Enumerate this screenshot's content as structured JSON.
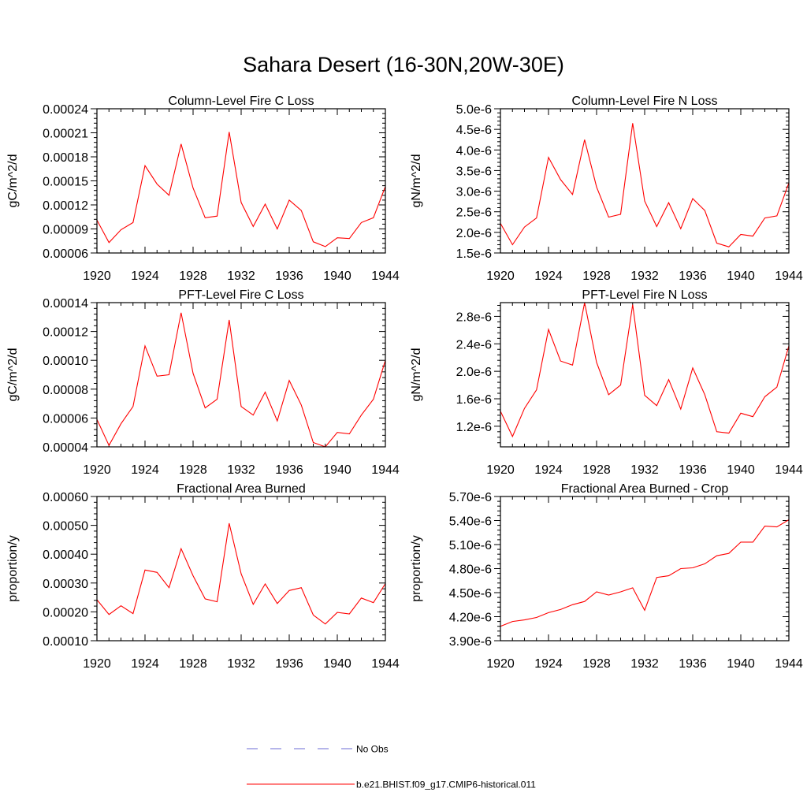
{
  "title": "Sahara Desert (16-30N,20W-30E)",
  "legend": {
    "placement": "bottom-center",
    "entries": [
      {
        "label": "No Obs",
        "color": "#6b6bd6",
        "style": "dashed"
      },
      {
        "label": "b.e21.BHIST.f09_g17.CMIP6-historical.011",
        "color": "#ff0000",
        "style": "solid"
      }
    ]
  },
  "chart_data": [
    {
      "type": "line",
      "title": "Column-Level Fire C Loss",
      "ylabel": "gC/m^2/d",
      "xlabel": "",
      "xlim": [
        1920,
        1944
      ],
      "ylim": [
        6e-05,
        0.00024
      ],
      "xticks": [
        "1920",
        "1924",
        "1928",
        "1932",
        "1936",
        "1940",
        "1944"
      ],
      "yticks": [
        "0.00006",
        "0.00009",
        "0.00012",
        "0.00015",
        "0.00018",
        "0.00021",
        "0.00024"
      ],
      "x": [
        1920,
        1921,
        1922,
        1923,
        1924,
        1925,
        1926,
        1927,
        1928,
        1929,
        1930,
        1931,
        1932,
        1933,
        1934,
        1935,
        1936,
        1937,
        1938,
        1939,
        1940,
        1941,
        1942,
        1943,
        1944
      ],
      "series": [
        {
          "color": "#ff0000",
          "values": [
            0.000101,
            7.3e-05,
            8.9e-05,
            9.8e-05,
            0.000169,
            0.000146,
            0.000132,
            0.000196,
            0.000141,
            0.000104,
            0.000106,
            0.000211,
            0.000123,
            9.3e-05,
            0.000121,
            9e-05,
            0.000126,
            0.000113,
            7.4e-05,
            6.8e-05,
            7.9e-05,
            7.8e-05,
            9.8e-05,
            0.000104,
            0.000143
          ]
        }
      ]
    },
    {
      "type": "line",
      "title": "Column-Level Fire N Loss",
      "ylabel": "gN/m^2/d",
      "xlabel": "",
      "xlim": [
        1920,
        1944
      ],
      "ylim": [
        1.5e-06,
        5e-06
      ],
      "xticks": [
        "1920",
        "1924",
        "1928",
        "1932",
        "1936",
        "1940",
        "1944"
      ],
      "yticks": [
        "1.5e-6",
        "2.0e-6",
        "2.5e-6",
        "3.0e-6",
        "3.5e-6",
        "4.0e-6",
        "4.5e-6",
        "5.0e-6"
      ],
      "x": [
        1920,
        1921,
        1922,
        1923,
        1924,
        1925,
        1926,
        1927,
        1928,
        1929,
        1930,
        1931,
        1932,
        1933,
        1934,
        1935,
        1936,
        1937,
        1938,
        1939,
        1940,
        1941,
        1942,
        1943,
        1944
      ],
      "series": [
        {
          "color": "#ff0000",
          "values": [
            2.22e-06,
            1.7e-06,
            2.13e-06,
            2.35e-06,
            3.82e-06,
            3.28e-06,
            2.92e-06,
            4.25e-06,
            3.1e-06,
            2.37e-06,
            2.44e-06,
            4.65e-06,
            2.76e-06,
            2.14e-06,
            2.72e-06,
            2.09e-06,
            2.82e-06,
            2.53e-06,
            1.74e-06,
            1.65e-06,
            1.95e-06,
            1.91e-06,
            2.35e-06,
            2.4e-06,
            3.2e-06
          ]
        }
      ]
    },
    {
      "type": "line",
      "title": "PFT-Level Fire C Loss",
      "ylabel": "gC/m^2/d",
      "xlabel": "",
      "xlim": [
        1920,
        1944
      ],
      "ylim": [
        4e-05,
        0.00014
      ],
      "xticks": [
        "1920",
        "1924",
        "1928",
        "1932",
        "1936",
        "1940",
        "1944"
      ],
      "yticks": [
        "0.00004",
        "0.00006",
        "0.00008",
        "0.00010",
        "0.00012",
        "0.00014"
      ],
      "x": [
        1920,
        1921,
        1922,
        1923,
        1924,
        1925,
        1926,
        1927,
        1928,
        1929,
        1930,
        1931,
        1932,
        1933,
        1934,
        1935,
        1936,
        1937,
        1938,
        1939,
        1940,
        1941,
        1942,
        1943,
        1944
      ],
      "series": [
        {
          "color": "#ff0000",
          "values": [
            5.9e-05,
            4.1e-05,
            5.6e-05,
            6.8e-05,
            0.00011,
            8.9e-05,
            9e-05,
            0.000133,
            9.1e-05,
            6.7e-05,
            7.3e-05,
            0.000128,
            6.8e-05,
            6.2e-05,
            7.8e-05,
            5.8e-05,
            8.6e-05,
            6.9e-05,
            4.3e-05,
            4e-05,
            5e-05,
            4.9e-05,
            6.2e-05,
            7.3e-05,
            0.0001
          ]
        }
      ]
    },
    {
      "type": "line",
      "title": "PFT-Level Fire N Loss",
      "ylabel": "gN/m^2/d",
      "xlabel": "",
      "xlim": [
        1920,
        1944
      ],
      "ylim": [
        9e-07,
        3e-06
      ],
      "xticks": [
        "1920",
        "1924",
        "1928",
        "1932",
        "1936",
        "1940",
        "1944"
      ],
      "yticks": [
        "1.2e-6",
        "1.6e-6",
        "2.0e-6",
        "2.4e-6",
        "2.8e-6"
      ],
      "x": [
        1920,
        1921,
        1922,
        1923,
        1924,
        1925,
        1926,
        1927,
        1928,
        1929,
        1930,
        1931,
        1932,
        1933,
        1934,
        1935,
        1936,
        1937,
        1938,
        1939,
        1940,
        1941,
        1942,
        1943,
        1944
      ],
      "series": [
        {
          "color": "#ff0000",
          "values": [
            1.42e-06,
            1.05e-06,
            1.46e-06,
            1.73e-06,
            2.61e-06,
            2.15e-06,
            2.09e-06,
            3e-06,
            2.13e-06,
            1.66e-06,
            1.8e-06,
            2.97e-06,
            1.65e-06,
            1.5e-06,
            1.88e-06,
            1.45e-06,
            2.05e-06,
            1.66e-06,
            1.12e-06,
            1.1e-06,
            1.39e-06,
            1.34e-06,
            1.63e-06,
            1.77e-06,
            2.37e-06
          ]
        }
      ]
    },
    {
      "type": "line",
      "title": "Fractional Area Burned",
      "ylabel": "proportion/y",
      "xlabel": "",
      "xlim": [
        1920,
        1944
      ],
      "ylim": [
        0.0001,
        0.0006
      ],
      "xticks": [
        "1920",
        "1924",
        "1928",
        "1932",
        "1936",
        "1940",
        "1944"
      ],
      "yticks": [
        "0.00010",
        "0.00020",
        "0.00030",
        "0.00040",
        "0.00050",
        "0.00060"
      ],
      "x": [
        1920,
        1921,
        1922,
        1923,
        1924,
        1925,
        1926,
        1927,
        1928,
        1929,
        1930,
        1931,
        1932,
        1933,
        1934,
        1935,
        1936,
        1937,
        1938,
        1939,
        1940,
        1941,
        1942,
        1943,
        1944
      ],
      "series": [
        {
          "color": "#ff0000",
          "values": [
            0.000242,
            0.000191,
            0.000221,
            0.000194,
            0.000345,
            0.000337,
            0.000284,
            0.000419,
            0.000325,
            0.000245,
            0.000235,
            0.000507,
            0.000332,
            0.000226,
            0.000297,
            0.000229,
            0.000274,
            0.000284,
            0.000189,
            0.000158,
            0.000198,
            0.000193,
            0.000248,
            0.000232,
            0.000298
          ]
        }
      ]
    },
    {
      "type": "line",
      "title": "Fractional Area Burned - Crop",
      "ylabel": "proportion/y",
      "xlabel": "",
      "xlim": [
        1920,
        1944
      ],
      "ylim": [
        3.9e-06,
        5.7e-06
      ],
      "xticks": [
        "1920",
        "1924",
        "1928",
        "1932",
        "1936",
        "1940",
        "1944"
      ],
      "yticks": [
        "3.90e-6",
        "4.20e-6",
        "4.50e-6",
        "4.80e-6",
        "5.10e-6",
        "5.40e-6",
        "5.70e-6"
      ],
      "x": [
        1920,
        1921,
        1922,
        1923,
        1924,
        1925,
        1926,
        1927,
        1928,
        1929,
        1930,
        1931,
        1932,
        1933,
        1934,
        1935,
        1936,
        1937,
        1938,
        1939,
        1940,
        1941,
        1942,
        1943,
        1944
      ],
      "series": [
        {
          "color": "#ff0000",
          "values": [
            4.08e-06,
            4.14e-06,
            4.16e-06,
            4.19e-06,
            4.25e-06,
            4.29e-06,
            4.35e-06,
            4.39e-06,
            4.51e-06,
            4.47e-06,
            4.51e-06,
            4.56e-06,
            4.28e-06,
            4.69e-06,
            4.71e-06,
            4.8e-06,
            4.81e-06,
            4.86e-06,
            4.96e-06,
            4.99e-06,
            5.13e-06,
            5.13e-06,
            5.33e-06,
            5.32e-06,
            5.41e-06
          ]
        }
      ]
    }
  ]
}
